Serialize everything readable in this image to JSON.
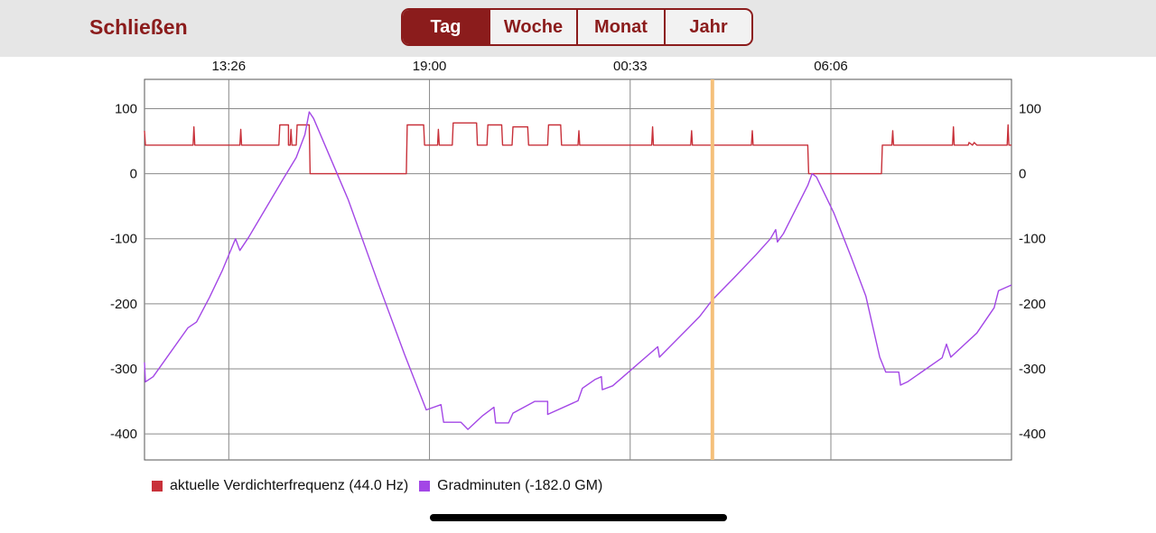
{
  "header": {
    "close_label": "Schließen",
    "tabs": [
      {
        "label": "Tag",
        "active": true
      },
      {
        "label": "Woche",
        "active": false
      },
      {
        "label": "Monat",
        "active": false
      },
      {
        "label": "Jahr",
        "active": false
      }
    ]
  },
  "colors": {
    "accent": "#8b1c1c",
    "series_frequency": "#c8313a",
    "series_gradminuten": "#a347e6",
    "cursor": "#f5c07a"
  },
  "chart_data": {
    "type": "line",
    "x_ticks": [
      "13:26",
      "19:00",
      "00:33",
      "06:06"
    ],
    "y_ticks": [
      100,
      0,
      -100,
      -200,
      -300,
      -400
    ],
    "ylim": [
      -440,
      145
    ],
    "xlim": [
      0,
      1000
    ],
    "grid": true,
    "legend_position": "bottom-left",
    "cursor_x": 655,
    "series": [
      {
        "name": "aktuelle Verdichterfrequenz (44.0 Hz)",
        "values": [
          [
            0,
            66
          ],
          [
            1,
            44
          ],
          [
            56,
            44
          ],
          [
            57,
            72
          ],
          [
            58,
            44
          ],
          [
            110,
            44
          ],
          [
            111,
            68
          ],
          [
            112,
            44
          ],
          [
            155,
            44
          ],
          [
            156,
            75
          ],
          [
            166,
            75
          ],
          [
            166,
            44
          ],
          [
            168,
            44
          ],
          [
            169,
            68
          ],
          [
            170,
            44
          ],
          [
            175,
            44
          ],
          [
            176,
            75
          ],
          [
            190,
            75
          ],
          [
            191,
            0
          ],
          [
            302,
            0
          ],
          [
            303,
            75
          ],
          [
            322,
            75
          ],
          [
            323,
            44
          ],
          [
            338,
            44
          ],
          [
            339,
            68
          ],
          [
            340,
            44
          ],
          [
            355,
            44
          ],
          [
            356,
            78
          ],
          [
            383,
            78
          ],
          [
            384,
            44
          ],
          [
            395,
            44
          ],
          [
            396,
            75
          ],
          [
            412,
            75
          ],
          [
            413,
            44
          ],
          [
            424,
            44
          ],
          [
            425,
            72
          ],
          [
            442,
            72
          ],
          [
            443,
            44
          ],
          [
            465,
            44
          ],
          [
            466,
            75
          ],
          [
            480,
            75
          ],
          [
            481,
            44
          ],
          [
            500,
            44
          ],
          [
            501,
            66
          ],
          [
            502,
            44
          ],
          [
            585,
            44
          ],
          [
            586,
            72
          ],
          [
            587,
            44
          ],
          [
            630,
            44
          ],
          [
            631,
            66
          ],
          [
            632,
            44
          ],
          [
            700,
            44
          ],
          [
            701,
            66
          ],
          [
            702,
            44
          ],
          [
            765,
            44
          ],
          [
            766,
            0
          ],
          [
            850,
            0
          ],
          [
            851,
            44
          ],
          [
            862,
            44
          ],
          [
            863,
            66
          ],
          [
            864,
            44
          ],
          [
            932,
            44
          ],
          [
            933,
            72
          ],
          [
            934,
            44
          ],
          [
            950,
            44
          ],
          [
            951,
            48
          ],
          [
            955,
            44
          ],
          [
            957,
            48
          ],
          [
            960,
            44
          ],
          [
            995,
            44
          ],
          [
            996,
            75
          ],
          [
            997,
            44
          ],
          [
            1000,
            44
          ]
        ]
      },
      {
        "name": "Gradminuten (-182.0 GM)",
        "values": [
          [
            0,
            -290
          ],
          [
            1,
            -320
          ],
          [
            10,
            -312
          ],
          [
            50,
            -237
          ],
          [
            60,
            -228
          ],
          [
            75,
            -190
          ],
          [
            90,
            -148
          ],
          [
            105,
            -100
          ],
          [
            110,
            -118
          ],
          [
            120,
            -98
          ],
          [
            160,
            -8
          ],
          [
            175,
            25
          ],
          [
            185,
            60
          ],
          [
            190,
            95
          ],
          [
            195,
            85
          ],
          [
            235,
            -40
          ],
          [
            270,
            -170
          ],
          [
            300,
            -278
          ],
          [
            325,
            -363
          ],
          [
            342,
            -355
          ],
          [
            345,
            -382
          ],
          [
            365,
            -382
          ],
          [
            373,
            -393
          ],
          [
            390,
            -372
          ],
          [
            403,
            -359
          ],
          [
            405,
            -383
          ],
          [
            420,
            -383
          ],
          [
            425,
            -368
          ],
          [
            450,
            -350
          ],
          [
            465,
            -350
          ],
          [
            465,
            -370
          ],
          [
            500,
            -349
          ],
          [
            505,
            -330
          ],
          [
            520,
            -316
          ],
          [
            527,
            -312
          ],
          [
            528,
            -332
          ],
          [
            540,
            -326
          ],
          [
            592,
            -266
          ],
          [
            594,
            -282
          ],
          [
            640,
            -220
          ],
          [
            655,
            -194
          ],
          [
            680,
            -160
          ],
          [
            705,
            -125
          ],
          [
            722,
            -100
          ],
          [
            728,
            -86
          ],
          [
            730,
            -105
          ],
          [
            737,
            -92
          ],
          [
            765,
            -18
          ],
          [
            770,
            0
          ],
          [
            775,
            -5
          ],
          [
            795,
            -60
          ],
          [
            815,
            -128
          ],
          [
            832,
            -188
          ],
          [
            848,
            -282
          ],
          [
            855,
            -305
          ],
          [
            870,
            -305
          ],
          [
            872,
            -325
          ],
          [
            880,
            -320
          ],
          [
            920,
            -283
          ],
          [
            925,
            -262
          ],
          [
            930,
            -282
          ],
          [
            960,
            -245
          ],
          [
            980,
            -206
          ],
          [
            985,
            -180
          ],
          [
            1000,
            -171
          ]
        ]
      }
    ]
  }
}
